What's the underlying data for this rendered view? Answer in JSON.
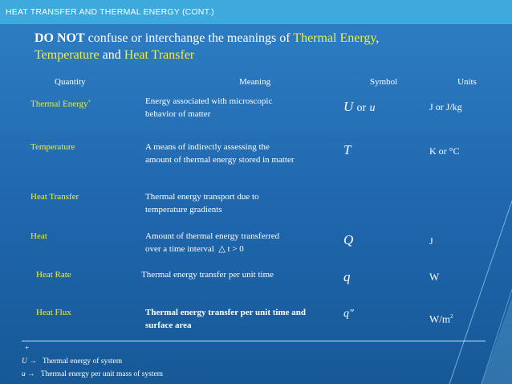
{
  "header": {
    "title": "HEAT TRANSFER AND THERMAL ENERGY (CONT.)"
  },
  "intro": {
    "p1": "DO NOT",
    "p2": " confuse or interchange the meanings of ",
    "te": "Thermal Energy",
    "comma": ",",
    "temp": "Temperature",
    "and": " and ",
    "ht": "Heat Transfer"
  },
  "table": {
    "headers": {
      "quantity": "Quantity",
      "meaning": "Meaning",
      "symbol": "Symbol",
      "units": "Units"
    },
    "rows": [
      {
        "quantity": "Thermal Energy",
        "marker": "+",
        "meaning": "Energy associated with microscopic behavior of matter",
        "symbol": "U",
        "symbol_or": "or",
        "symbol2": "u",
        "units": "J or J/kg"
      },
      {
        "quantity": "Temperature",
        "meaning": "A means of indirectly assessing the amount of thermal energy stored in matter",
        "symbol": "T",
        "units": "K or °C"
      },
      {
        "quantity": "Heat Transfer",
        "meaning": "Thermal energy transport due to temperature gradients",
        "symbol": "",
        "units": ""
      },
      {
        "quantity": "Heat",
        "meaning_a": "Amount of thermal energy transferred",
        "meaning_b": "over a time interval",
        "meaning_c": "△ t > 0",
        "symbol": "Q",
        "units": "J"
      },
      {
        "quantity": "Heat Rate",
        "meaning": "Thermal energy transfer per unit time",
        "symbol": "q",
        "units": "W"
      },
      {
        "quantity": "Heat Flux",
        "meaning": "Thermal energy transfer per unit time and surface area",
        "symbol": "q″",
        "units": "W/m",
        "units_sup": "2"
      }
    ]
  },
  "footnotes": {
    "marker": "+",
    "f1_sym": "U",
    "f1_text": "Thermal energy of system",
    "f2_sym": "u",
    "f2_text": "Thermal energy per unit mass of system",
    "arrow": "→"
  },
  "colors": {
    "highlight": "#f2ef35",
    "header_bar": "#3ea9dc",
    "background": "#1f66ad"
  }
}
